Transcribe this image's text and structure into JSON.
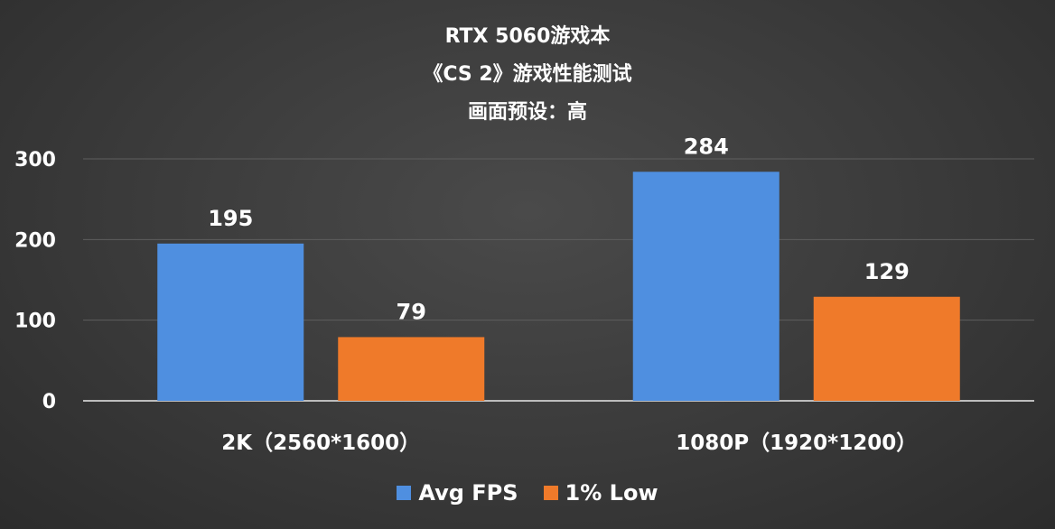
{
  "chart_data": {
    "type": "bar",
    "title_lines": [
      "RTX 5060游戏本",
      "《CS 2》游戏性能测试",
      "画面预设：高"
    ],
    "categories": [
      "2K（2560*1600）",
      "1080P（1920*1200）"
    ],
    "series": [
      {
        "name": "Avg FPS",
        "values": [
          195,
          284
        ],
        "color": "#4f8fe0"
      },
      {
        "name": "1% Low",
        "values": [
          79,
          129
        ],
        "color": "#ef7a2a"
      }
    ],
    "yticks": [
      0,
      100,
      200,
      300
    ],
    "ylim": [
      0,
      300
    ],
    "grid": true,
    "legend": "bottom"
  }
}
